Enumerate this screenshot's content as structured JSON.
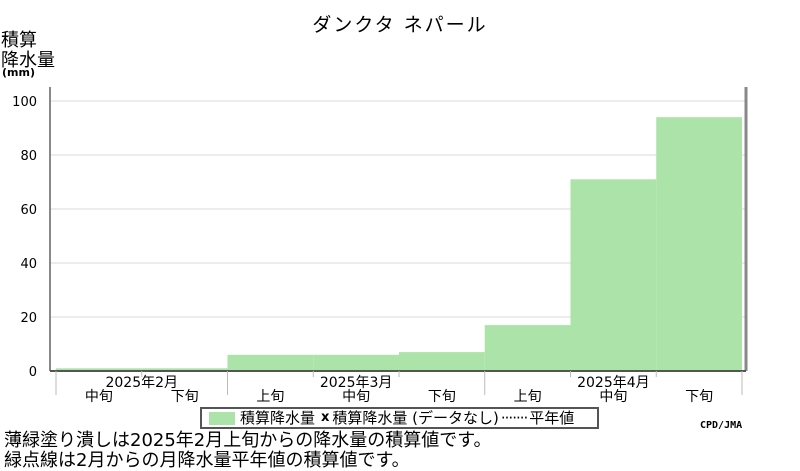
{
  "title": "ダンクタ ネパール",
  "y_axis_label_line1": "積算",
  "y_axis_label_line2": "降水量",
  "y_axis_unit": "(mm)",
  "legend": {
    "item1": "積算降水量",
    "marker2": "x",
    "item2": "積算降水量 (データなし)",
    "dots3": "·······",
    "item3": "平年値"
  },
  "source": "CPD/JMA",
  "notes": [
    "薄緑塗り潰しは2025年2月上旬からの降水量の積算値です。",
    "緑点線は2月からの月降水量平年値の積算値です。"
  ],
  "colors": {
    "fill": "#abe3a8",
    "axis_frame": "#888888",
    "grid": "#d8d8d8"
  },
  "chart_data": {
    "type": "area",
    "ylim": [
      0,
      100
    ],
    "yticks": [
      0,
      20,
      40,
      60,
      80,
      100
    ],
    "grid": true,
    "legend_position": "bottom-center",
    "dekads": [
      "中旬",
      "下旬",
      "上旬",
      "中旬",
      "下旬",
      "上旬",
      "中旬",
      "下旬"
    ],
    "months": [
      {
        "label": "2025年2月",
        "dekad_start": 0,
        "dekad_count": 2
      },
      {
        "label": "2025年3月",
        "dekad_start": 2,
        "dekad_count": 3
      },
      {
        "label": "2025年4月",
        "dekad_start": 5,
        "dekad_count": 3
      }
    ],
    "series": [
      {
        "name": "積算降水量",
        "values": [
          1,
          1,
          6,
          6,
          7,
          17,
          71,
          94
        ]
      }
    ]
  }
}
